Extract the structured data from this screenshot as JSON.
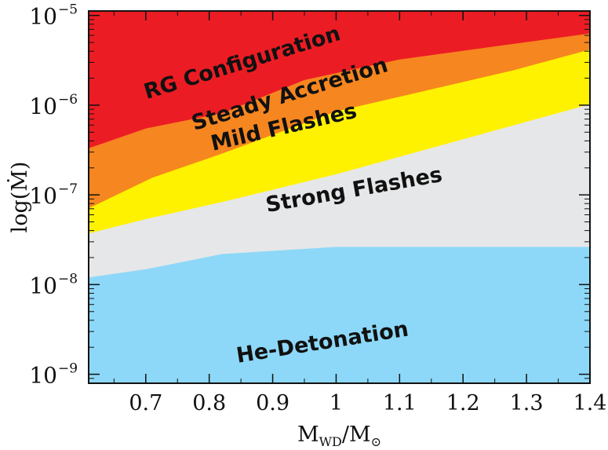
{
  "chart_data": {
    "type": "area",
    "xlabel": "M_WD/M_⊙",
    "xlabel_main": "M",
    "xlabel_sub": "WD",
    "xlabel_sep": "/M",
    "xlabel_sub2": "⊙",
    "ylabel": "log(Ṁ)",
    "xlim": [
      0.61,
      1.4
    ],
    "ylim_exp": [
      -9.1,
      -4.95
    ],
    "y_scale": "log",
    "grid": false,
    "legend": "none",
    "x_ticks": [
      {
        "value": 0.7,
        "label": "0.7"
      },
      {
        "value": 0.8,
        "label": "0.8"
      },
      {
        "value": 0.9,
        "label": "0.9"
      },
      {
        "value": 1.0,
        "label": "1"
      },
      {
        "value": 1.1,
        "label": "1.1"
      },
      {
        "value": 1.2,
        "label": "1.2"
      },
      {
        "value": 1.3,
        "label": "1.3"
      },
      {
        "value": 1.4,
        "label": "1.4"
      }
    ],
    "y_ticks": [
      {
        "exp": -5,
        "base": "10",
        "label": "−5"
      },
      {
        "exp": -6,
        "base": "10",
        "label": "−6"
      },
      {
        "exp": -7,
        "base": "10",
        "label": "−7"
      },
      {
        "exp": -8,
        "base": "10",
        "label": "−8"
      },
      {
        "exp": -9,
        "base": "10",
        "label": "−9"
      }
    ],
    "boundaries": {
      "strong_upper_limit": {
        "x": [
          0.61,
          0.7,
          0.82,
          1.0,
          1.4
        ],
        "log_y": [
          -7.43,
          -7.27,
          -7.08,
          -6.77,
          -5.99
        ]
      },
      "mild_upper_limit": {
        "x": [
          0.61,
          0.71,
          0.82,
          1.0,
          1.28,
          1.4
        ],
        "log_y": [
          -7.15,
          -6.81,
          -6.54,
          -6.07,
          -5.61,
          -5.38
        ]
      },
      "steady_upper_limit": {
        "x": [
          0.61,
          0.7,
          0.82,
          0.95,
          1.1,
          1.4
        ],
        "log_y": [
          -6.48,
          -6.26,
          -6.09,
          -5.72,
          -5.49,
          -5.2
        ]
      },
      "detonation_upper_limit": {
        "x": [
          0.61,
          0.7,
          0.82,
          1.0,
          1.4
        ],
        "log_y": [
          -7.92,
          -7.83,
          -7.66,
          -7.58,
          -7.58
        ]
      }
    },
    "regions": [
      {
        "name": "RG Configuration",
        "color": "#ec1c24"
      },
      {
        "name": "Steady Accretion",
        "color": "#f6861f"
      },
      {
        "name": "Mild Flashes",
        "color": "#fff200"
      },
      {
        "name": "Strong Flashes",
        "color": "#e6e7e8"
      },
      {
        "name": "He-Detonation",
        "color": "#8dd8f8"
      }
    ],
    "annotations": [
      {
        "text": "RG Configuration",
        "x": 0.855,
        "log_y": -5.6,
        "rotate": -17
      },
      {
        "text": "Steady Accretion",
        "x": 0.93,
        "log_y": -5.95,
        "rotate": -17
      },
      {
        "text": "Mild Flashes",
        "x": 0.92,
        "log_y": -6.32,
        "rotate": -13
      },
      {
        "text": "Strong Flashes",
        "x": 1.03,
        "log_y": -7.02,
        "rotate": -10
      },
      {
        "text": "He-Detonation",
        "x": 0.98,
        "log_y": -8.72,
        "rotate": -9
      }
    ]
  }
}
